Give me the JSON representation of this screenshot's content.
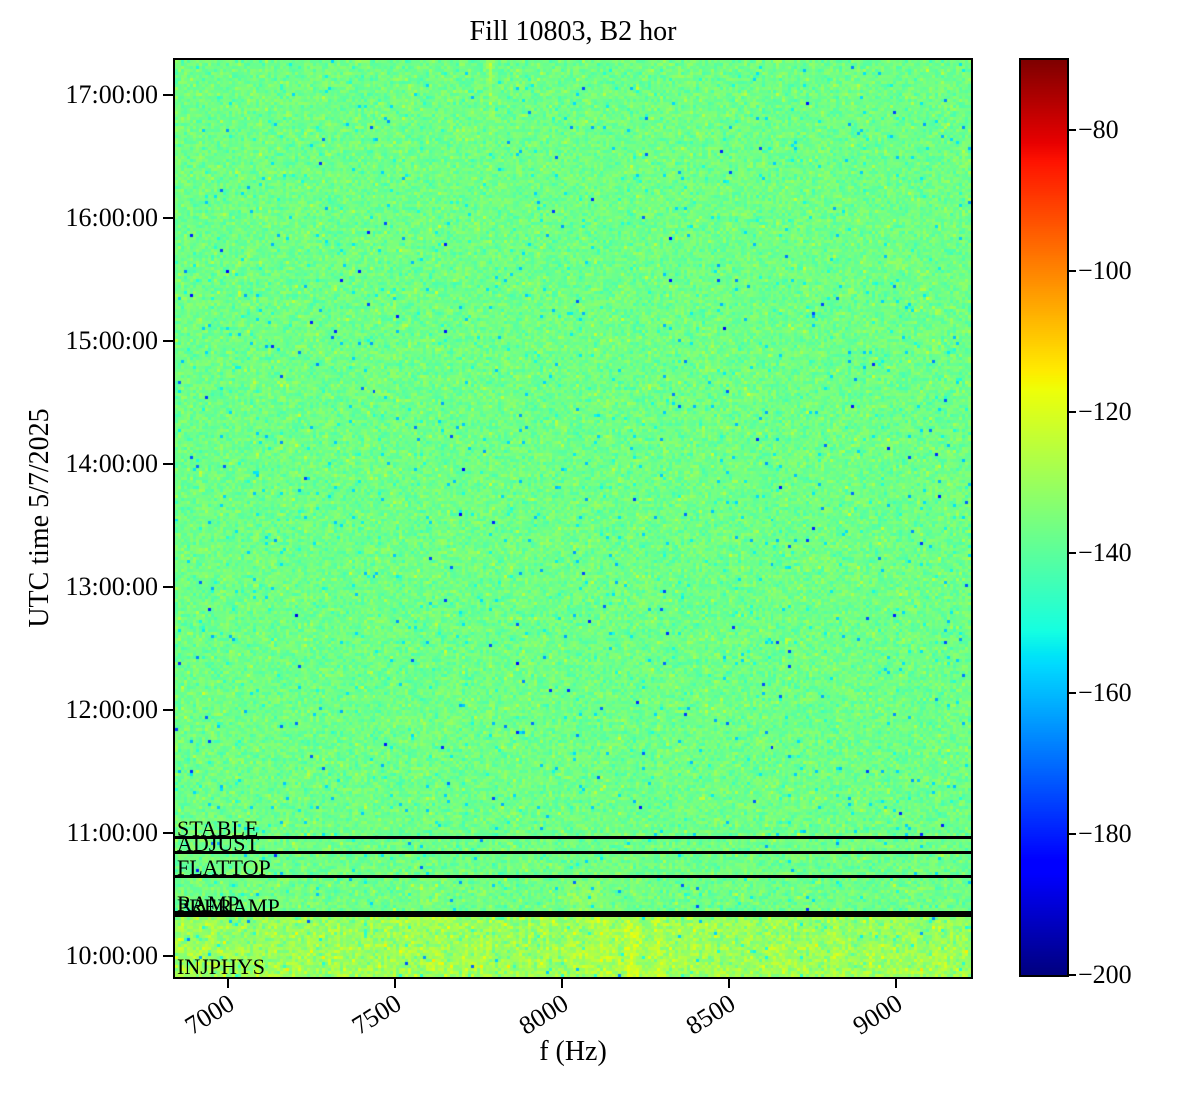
{
  "chart_data": {
    "type": "heatmap",
    "title": "Fill 10803, B2 hor",
    "xlabel": "f (Hz)",
    "ylabel": "UTC time 5/7/2025",
    "colormap": "jet",
    "xlim": [
      6840,
      9225
    ],
    "x_ticks": [
      7000,
      7500,
      8000,
      8500,
      9000
    ],
    "x_tick_labels": [
      "7000",
      "7500",
      "8000",
      "8500",
      "9000"
    ],
    "time_axis": {
      "date": "5/7/2025",
      "start_hour": 9.833,
      "end_hour": 17.283,
      "tick_hours": [
        17,
        16,
        15,
        14,
        13,
        12,
        11,
        10
      ],
      "tick_labels": [
        "17:00:00",
        "16:00:00",
        "15:00:00",
        "14:00:00",
        "13:00:00",
        "12:00:00",
        "11:00:00",
        "10:00:00"
      ]
    },
    "colorbar": {
      "vmin": -200,
      "vmax": -70,
      "tick_values": [
        -80,
        -100,
        -120,
        -140,
        -160,
        -180,
        -200
      ],
      "tick_labels": [
        "−80",
        "−100",
        "−120",
        "−140",
        "−160",
        "−180",
        "−200"
      ]
    },
    "background_level_db": -137,
    "noise_sigma_db": 3.2,
    "beam_modes": [
      {
        "label": "STABLE",
        "start_hour": 10.97,
        "has_line": true
      },
      {
        "label": "ADJUST",
        "start_hour": 10.85,
        "has_line": true
      },
      {
        "label": "FLATTOP",
        "start_hour": 10.65,
        "has_line": true
      },
      {
        "label": "RAMP",
        "start_hour": 10.36,
        "has_line": true
      },
      {
        "label": "PRERAMP",
        "start_hour": 10.335,
        "has_line": true
      },
      {
        "label": "INJPHYS",
        "start_hour": 9.85,
        "has_line": false
      }
    ],
    "features": {
      "injection_band": {
        "end_hour": 10.335,
        "level_db": -131,
        "sigma_db": 4.2,
        "streak_freqs_hz": [
          8125,
          8210,
          8290
        ],
        "streak_boost_db": [
          5,
          6,
          5
        ],
        "broadband_lo_hz": 8040,
        "broadband_hi_hz": 8360,
        "broadband_boost_db": 1.2
      },
      "vertical_line": {
        "freq_hz": 7790,
        "from_hour": 16.4,
        "boost_db": 6,
        "faint_full_height_db": 1.0
      },
      "smudges": [
        {
          "freq_hz": 8070,
          "hour": 10.45,
          "sigma_f": 45,
          "sigma_t": 0.1,
          "boost_db": 5
        },
        {
          "freq_hz": 7590,
          "hour": 10.47,
          "sigma_f": 40,
          "sigma_t": 0.08,
          "boost_db": 3
        }
      ]
    }
  }
}
